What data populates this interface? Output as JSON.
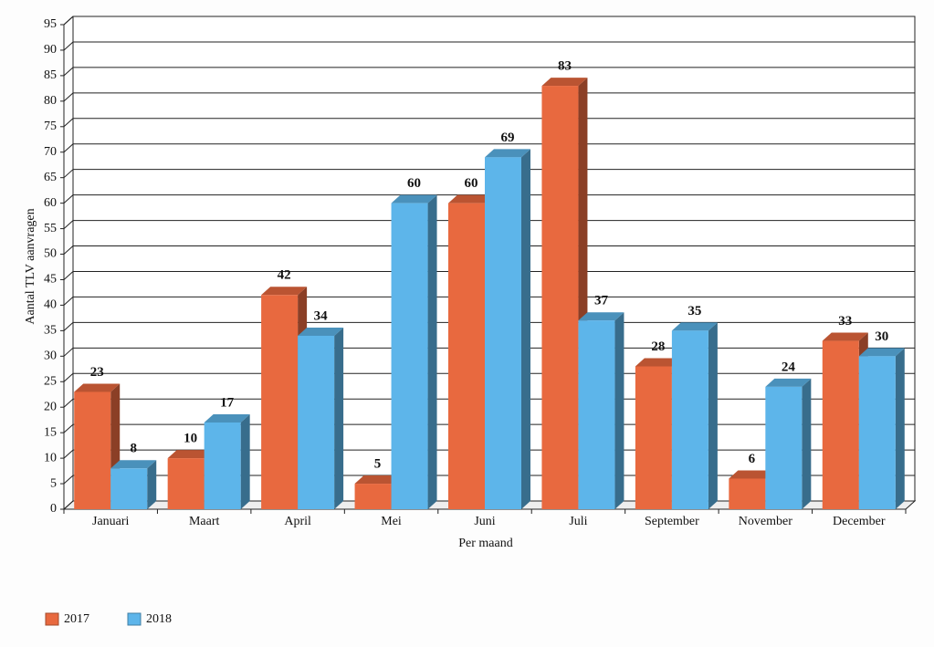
{
  "chart_data": {
    "type": "bar",
    "y_label": "Aantal TLV aanvragen",
    "x_label": "Per maand",
    "categories": [
      "Januari",
      "Maart",
      "April",
      "Mei",
      "Juni",
      "Juli",
      "September",
      "November",
      "December"
    ],
    "series": [
      {
        "name": "2017",
        "color": "#e8693f",
        "values": [
          23,
          10,
          42,
          5,
          60,
          83,
          28,
          6,
          33
        ]
      },
      {
        "name": "2018",
        "color": "#5db5ea",
        "values": [
          8,
          17,
          34,
          60,
          69,
          37,
          35,
          24,
          30
        ]
      }
    ],
    "ylim": [
      0,
      95
    ],
    "yticks": [
      0,
      5,
      10,
      15,
      20,
      25,
      30,
      35,
      40,
      45,
      50,
      55,
      60,
      65,
      70,
      75,
      80,
      85,
      90,
      95
    ],
    "grid": true
  }
}
